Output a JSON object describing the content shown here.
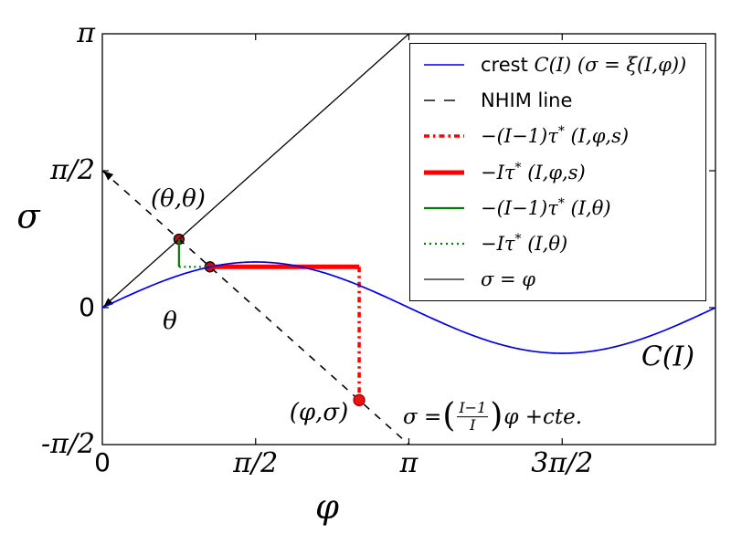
{
  "chart_data": {
    "type": "line",
    "title": "",
    "xlabel": "φ",
    "ylabel": "σ",
    "xlim": [
      0,
      6.2832
    ],
    "ylim": [
      -1.5708,
      3.1416
    ],
    "grid": false,
    "legend_position": "upper right",
    "x_ticks": [
      {
        "v": 0,
        "label": "0",
        "style": "plain"
      },
      {
        "v": 1.5708,
        "label": "π/2",
        "style": "math"
      },
      {
        "v": 3.1416,
        "label": "π",
        "style": "math"
      },
      {
        "v": 4.7124,
        "label": "3π/2",
        "style": "math"
      }
    ],
    "y_ticks": [
      {
        "v": 3.1416,
        "label": "π",
        "style": "math"
      },
      {
        "v": 1.5708,
        "label": "π/2",
        "style": "math"
      },
      {
        "v": 0,
        "label": "0",
        "style": "plain"
      },
      {
        "v": -1.5708,
        "label": "-π/2",
        "style": "math"
      }
    ],
    "series": [
      {
        "id": "sigma-eq-phi",
        "name": "σ = φ",
        "kind": "linear",
        "slope": 1,
        "intercept": 0,
        "x_range": [
          0,
          3.1416
        ],
        "color": "#000000",
        "dash": "",
        "width": 1.3,
        "arrow_at_start": true
      },
      {
        "id": "nhim",
        "name": "NHIM line",
        "kind": "linear",
        "slope": -1,
        "intercept": 1.5708,
        "x_range": [
          0,
          3.1416
        ],
        "color": "#000000",
        "dash": "8,8",
        "width": 1.6,
        "arrow_at_start": true
      },
      {
        "id": "green-solid",
        "name": "−(I−1)τ* (I,θ)",
        "kind": "segment",
        "x1": 0.7854,
        "y1": 0.7854,
        "x2": 0.7854,
        "y2": 0.468,
        "color": "#008000",
        "dash": "",
        "width": 2.2
      },
      {
        "id": "green-dotted",
        "name": "−Iτ* (I,θ)",
        "kind": "segment",
        "x1": 0.7854,
        "y1": 0.468,
        "x2": 1.103,
        "y2": 0.468,
        "color": "#008000",
        "dash": "2,3.5",
        "width": 2.2
      },
      {
        "id": "red-thick",
        "name": "−Iτ* (I,φ,s)",
        "kind": "segment",
        "x1": 1.103,
        "y1": 0.468,
        "x2": 2.632,
        "y2": 0.468,
        "color": "#ff0000",
        "dash": "",
        "width": 5
      },
      {
        "id": "red-dashdot",
        "name": "−(I−1)τ* (I,φ,s)",
        "kind": "segment",
        "x1": 2.632,
        "y1": 0.468,
        "x2": 2.632,
        "y2": -1.061,
        "color": "#ff0000",
        "dash": "6,4,2.5,4",
        "width": 3.5
      },
      {
        "id": "crest",
        "name": "crest C(I) (σ = ξ(I,φ))",
        "kind": "sine",
        "amplitude": 0.5236,
        "x_range": [
          0,
          6.2832
        ],
        "color": "#0000ee",
        "dash": "",
        "width": 1.7
      }
    ],
    "points": [
      {
        "id": "theta-theta-point",
        "label": "(θ,θ)",
        "x": 0.7854,
        "y": 0.7854,
        "r": 5.5,
        "fill": "#b01515",
        "stroke": "#100000",
        "layer": "below"
      },
      {
        "id": "nhim-crest-intersection-point",
        "label": "",
        "x": 1.103,
        "y": 0.468,
        "r": 5.5,
        "fill": "#b01515",
        "stroke": "#100000",
        "layer": "below"
      },
      {
        "id": "phi-sigma-point",
        "label": "(φ,σ)",
        "x": 2.632,
        "y": -1.061,
        "r": 6,
        "fill": "#ee1111",
        "stroke": "#990000",
        "layer": "above"
      }
    ],
    "annotations": {
      "theta_theta": {
        "text": "(θ,θ)",
        "x": 0.777,
        "y": 1.246
      },
      "theta": {
        "text": "θ",
        "x": 0.693,
        "y": -0.157
      },
      "phi_sigma": {
        "text": "(φ,σ)",
        "x": 2.219,
        "y": -1.204
      },
      "crest": {
        "text": "C(I)",
        "x": 5.796,
        "y": -0.566
      },
      "nhim_equation": {
        "text": "σ = ((I−1)/I)φ + cte.",
        "lead": "σ =",
        "open": "(",
        "num": "I−1",
        "den": "I",
        "close": ")",
        "tail": "φ +cte.",
        "x": 3.081,
        "y": -1.257
      }
    }
  },
  "legend": {
    "entries": [
      {
        "sample": {
          "color": "#2222ee",
          "width": 1.7,
          "dash": ""
        },
        "plain": "crest ",
        "math": "C(I) (σ = ξ(I,φ))",
        "sup": "",
        "math2": ""
      },
      {
        "sample": {
          "color": "#111111",
          "width": 1.6,
          "dash": "12,10"
        },
        "plain": "NHIM line",
        "math": "",
        "sup": "",
        "math2": ""
      },
      {
        "sample": {
          "color": "#ff0000",
          "width": 3.5,
          "dash": "6,4,2.5,4"
        },
        "plain": "",
        "math": "−(I−1)τ",
        "sup": "*",
        "math2": " (I,φ,s)"
      },
      {
        "sample": {
          "color": "#ff0000",
          "width": 5,
          "dash": ""
        },
        "plain": "",
        "math": "−Iτ",
        "sup": "*",
        "math2": " (I,φ,s)"
      },
      {
        "sample": {
          "color": "#008000",
          "width": 2.2,
          "dash": ""
        },
        "plain": "",
        "math": "−(I−1)τ",
        "sup": "*",
        "math2": " (I,θ)"
      },
      {
        "sample": {
          "color": "#008000",
          "width": 2.2,
          "dash": "2,4"
        },
        "plain": "",
        "math": "−Iτ",
        "sup": "*",
        "math2": " (I,θ)"
      },
      {
        "sample": {
          "color": "#111111",
          "width": 1.3,
          "dash": ""
        },
        "plain": "",
        "math": "σ = φ",
        "sup": "",
        "math2": ""
      }
    ]
  }
}
